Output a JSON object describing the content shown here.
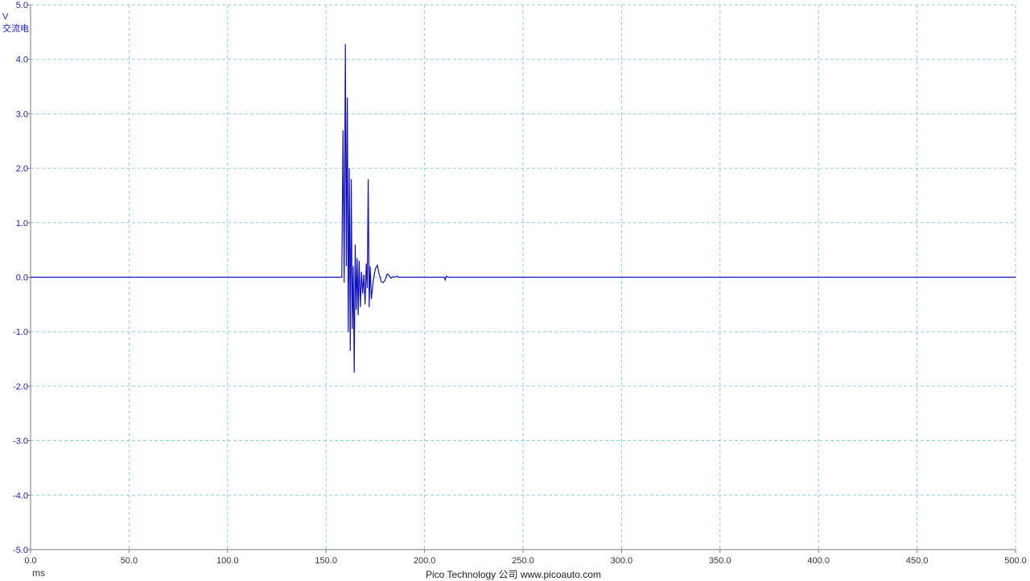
{
  "channel": {
    "unit": "V",
    "coupling": "交流电"
  },
  "x_unit": "ms",
  "footer": "Pico Technology 公司   www.picoauto.com",
  "colors": {
    "trace": "#1010c0",
    "grid": "#8ecfdf",
    "y_tick_text": "#1a1ac8",
    "x_tick_text": "#333333",
    "axis": "#7a7a7a"
  },
  "chart_data": {
    "type": "line",
    "xlim": [
      0,
      500
    ],
    "ylim": [
      -5,
      5
    ],
    "x_ticks": [
      "0.0",
      "50.0",
      "100.0",
      "150.0",
      "200.0",
      "250.0",
      "300.0",
      "350.0",
      "400.0",
      "450.0",
      "500.0"
    ],
    "y_ticks": [
      "5.0",
      "4.0",
      "3.0",
      "2.0",
      "1.0",
      "0.0",
      "-1.0",
      "-2.0",
      "-3.0",
      "-4.0",
      "-5.0"
    ],
    "grid": true,
    "series": [
      {
        "x": [
          0,
          50,
          100,
          150,
          158,
          158.6,
          159.2,
          159.8,
          160.3,
          160.8,
          161.3,
          161.8,
          162.3,
          162.8,
          163.3,
          163.8,
          164.3,
          164.8,
          165.3,
          165.8,
          166.3,
          166.8,
          167.4,
          168.0,
          168.6,
          169.2,
          169.8,
          170.4,
          170.9,
          171.4,
          171.9,
          172.4,
          173.0,
          174.0,
          175.0,
          176.0,
          177.0,
          178.0,
          179.0,
          180.0,
          181.0,
          182.0,
          183.0,
          184.0,
          185.0,
          186.0,
          187.0,
          190.0,
          200.0,
          210.0,
          210.5,
          211.0,
          212.0,
          250.0,
          300.0,
          350.0,
          400.0,
          450.0,
          500.0
        ],
        "y": [
          0,
          0,
          0,
          0,
          0,
          2.7,
          -0.1,
          4.28,
          0.2,
          3.3,
          -1.0,
          2.0,
          -1.35,
          1.8,
          -0.95,
          0.2,
          -1.75,
          0.6,
          -0.6,
          0.35,
          -0.7,
          0.3,
          -0.55,
          0.1,
          -0.3,
          0.05,
          -0.5,
          0.25,
          -0.2,
          1.8,
          -0.55,
          0.2,
          -0.4,
          -0.05,
          0.15,
          0.22,
          0.05,
          -0.08,
          -0.1,
          -0.05,
          0.06,
          0.03,
          -0.02,
          0.01,
          0.0,
          0.02,
          0.0,
          0.0,
          0.0,
          0.0,
          -0.05,
          0.02,
          0.0,
          0.0,
          0.0,
          0.0,
          0.0,
          0.0,
          0.0
        ]
      }
    ]
  }
}
